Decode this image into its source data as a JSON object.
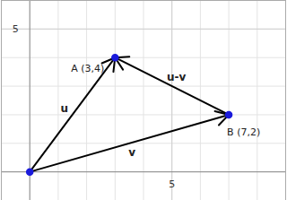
{
  "chart_data": {
    "type": "vector",
    "xlim": [
      -1,
      9
    ],
    "ylim": [
      -1,
      6
    ],
    "xticks": [
      5
    ],
    "yticks": [
      5
    ],
    "grid": true,
    "color": "#1a1adb",
    "points": [
      {
        "x": 0,
        "y": 0
      },
      {
        "x": 3,
        "y": 4,
        "label": "A (3,4)"
      },
      {
        "x": 7,
        "y": 2,
        "label": "B (7,2)"
      }
    ],
    "vectors": [
      {
        "label": "u",
        "from": [
          0,
          0
        ],
        "to": [
          3,
          4
        ]
      },
      {
        "label": "v",
        "from": [
          0,
          0
        ],
        "to": [
          7,
          2
        ]
      },
      {
        "label": "u-v",
        "from": [
          7,
          2
        ],
        "to": [
          3,
          4
        ]
      }
    ]
  }
}
